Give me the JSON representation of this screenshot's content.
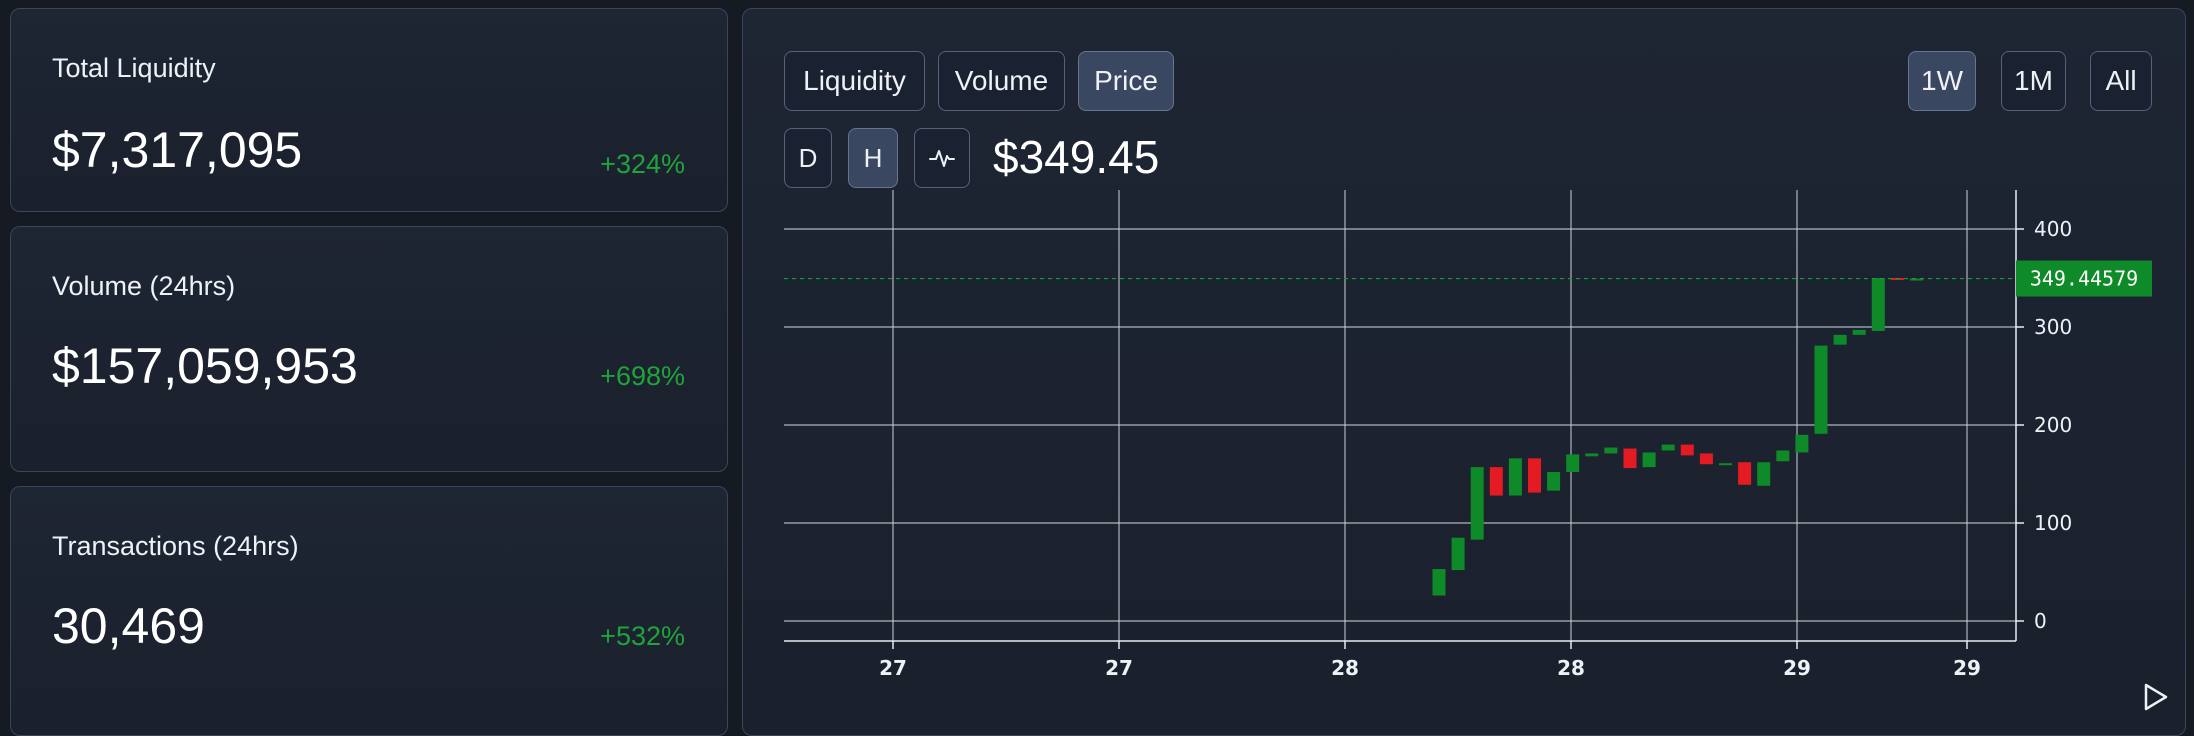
{
  "stats": [
    {
      "label": "Total Liquidity",
      "value": "$7,317,095",
      "change": "+324%"
    },
    {
      "label": "Volume (24hrs)",
      "value": "$157,059,953",
      "change": "+698%"
    },
    {
      "label": "Transactions (24hrs)",
      "value": "30,469",
      "change": "+532%"
    }
  ],
  "chart_tabs": [
    "Liquidity",
    "Volume",
    "Price"
  ],
  "active_tab": "Price",
  "ranges": [
    "1W",
    "1M",
    "All"
  ],
  "active_range": "1W",
  "intervals": {
    "d": "D",
    "h": "H"
  },
  "active_interval": "H",
  "current_price": "$349.45",
  "colors": {
    "up": "#0e8a28",
    "down": "#e51b23",
    "positive_change": "#1fa33a"
  },
  "icons": {
    "line_chart": "pulse-line-icon",
    "play": "play-icon"
  },
  "chart_data": {
    "type": "candlestick",
    "y_ticks": [
      "0",
      "100",
      "200",
      "300",
      "400"
    ],
    "ylim": [
      -22,
      418
    ],
    "x_ticks": [
      "27",
      "27",
      "28",
      "28",
      "29",
      "29"
    ],
    "last_price_label": "349.44579",
    "last_price": 349.45,
    "candles": [
      [
        -30,
        26,
        53
      ],
      [
        -29,
        52,
        85
      ],
      [
        -28,
        83,
        157
      ],
      [
        -27,
        157,
        128
      ],
      [
        -26,
        128,
        166
      ],
      [
        -25,
        166,
        131
      ],
      [
        -24,
        133,
        152
      ],
      [
        -23,
        152,
        170
      ],
      [
        -22,
        168,
        171
      ],
      [
        -21,
        171,
        177
      ],
      [
        -20,
        176,
        156
      ],
      [
        -19,
        157,
        172
      ],
      [
        -18,
        174,
        180
      ],
      [
        -17,
        180,
        169
      ],
      [
        -16,
        171,
        160
      ],
      [
        -15,
        160,
        161
      ],
      [
        -14,
        162,
        139
      ],
      [
        -13,
        138,
        162
      ],
      [
        -12,
        163,
        174
      ],
      [
        -11,
        172,
        190
      ],
      [
        -10,
        191,
        281
      ],
      [
        -9,
        282,
        292
      ],
      [
        -8,
        292,
        297
      ],
      [
        -7,
        296,
        350
      ],
      [
        -6,
        350,
        349
      ],
      [
        -5,
        349,
        349.45
      ]
    ]
  }
}
